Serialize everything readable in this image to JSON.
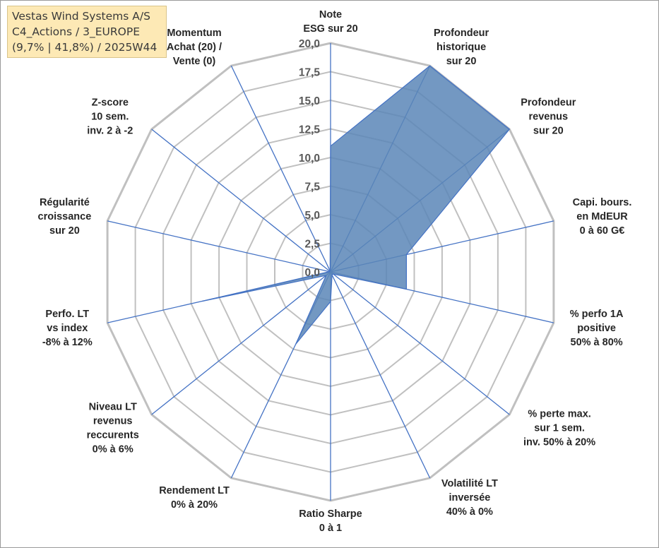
{
  "header": {
    "lines": [
      "Vestas Wind Systems A/S",
      "C4_Actions / 3_EUROPE",
      "(9,7% | 41,8%) / 2025W44"
    ]
  },
  "chart_data": {
    "type": "radar",
    "range": [
      0,
      20
    ],
    "ticks": [
      "0,0",
      "2,5",
      "5,0",
      "7,5",
      "10,0",
      "12,5",
      "15,0",
      "17,5",
      "20,0"
    ],
    "tick_values": [
      0,
      2.5,
      5,
      7.5,
      10,
      12.5,
      15,
      17.5,
      20
    ],
    "axes": [
      {
        "label": [
          "Note",
          "ESG sur 20"
        ]
      },
      {
        "label": [
          "Profondeur",
          "historique",
          "sur 20"
        ]
      },
      {
        "label": [
          "Profondeur",
          "revenus",
          "sur 20"
        ]
      },
      {
        "label": [
          "Capi. bours.",
          "en MdEUR",
          "0 à 60 G€"
        ]
      },
      {
        "label": [
          "% perfo 1A",
          "positive",
          "50% à 80%"
        ]
      },
      {
        "label": [
          "% perte max.",
          "sur 1 sem.",
          "inv. 50% à 20%"
        ]
      },
      {
        "label": [
          "Volatilité LT",
          "inversée",
          "40% à 0%"
        ]
      },
      {
        "label": [
          "Ratio Sharpe",
          "0 à 1"
        ]
      },
      {
        "label": [
          "Rendement LT",
          "0% à 20%"
        ]
      },
      {
        "label": [
          "Niveau LT",
          "revenus",
          "reccurents",
          "0% à 6%"
        ]
      },
      {
        "label": [
          "Perfo. LT",
          "vs index",
          "-8% à 12%"
        ]
      },
      {
        "label": [
          "Régularité",
          "croissance",
          "sur 20"
        ]
      },
      {
        "label": [
          "Z-score",
          "10 sem.",
          "inv. 2 à -2"
        ]
      },
      {
        "label": [
          "Momentum",
          "Achat (20) /",
          "Vente (0)"
        ]
      }
    ],
    "series": [
      {
        "values": [
          11.0,
          20.0,
          20.0,
          6.8,
          6.8,
          0.3,
          0.3,
          2.6,
          7.0,
          0.5,
          11.5,
          0.1,
          0.1,
          0.1
        ]
      }
    ],
    "colors": {
      "fill": "#5b86b7",
      "stroke": "#4472c4",
      "grid": "#c0c0c0",
      "spoke": "#4472c4"
    },
    "grid": true,
    "legend": "none"
  }
}
